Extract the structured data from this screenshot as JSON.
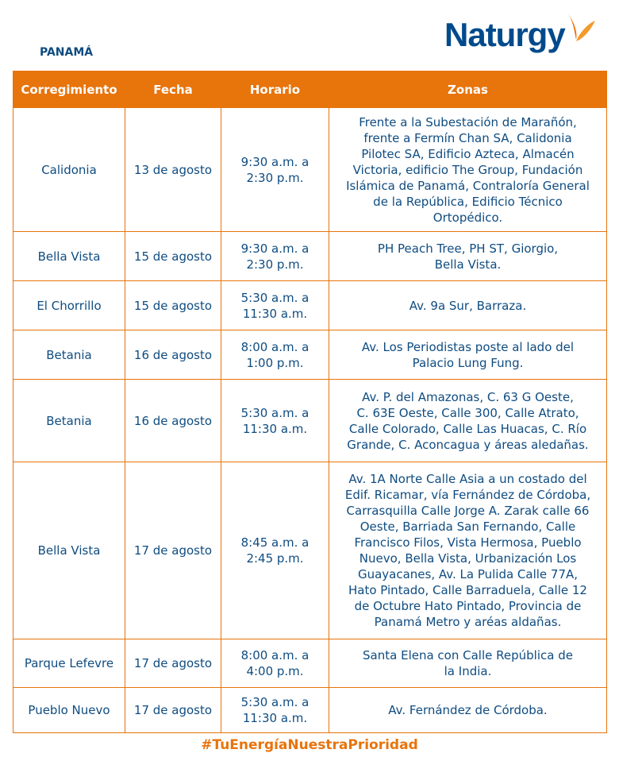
{
  "header": {
    "region": "PANAMÁ",
    "logo": "Naturgy",
    "brand_colors": {
      "orange": "#e8740c",
      "blue": "#0f4c81"
    }
  },
  "table": {
    "columns": [
      "Corregimiento",
      "Fecha",
      "Horario",
      "Zonas"
    ],
    "rows": [
      {
        "corregimiento": "Calidonia",
        "fecha": "13 de agosto",
        "horario": "9:30 a.m. a\n2:30 p.m.",
        "zonas": "Frente a la Subestación de Marañón,\nfrente a Fermín Chan SA, Calidonia\nPilotec SA, Edificio Azteca, Almacén\nVictoria, edificio The Group, Fundación\nIslámica de Panamá, Contraloría General\nde la República, Edificio Técnico\nOrtopédico."
      },
      {
        "corregimiento": "Bella Vista",
        "fecha": "15 de agosto",
        "horario": "9:30 a.m. a\n2:30 p.m.",
        "zonas": "PH Peach Tree, PH ST, Giorgio,\nBella Vista."
      },
      {
        "corregimiento": "El Chorrillo",
        "fecha": "15 de agosto",
        "horario": "5:30 a.m. a\n11:30 a.m.",
        "zonas": "Av. 9a Sur, Barraza."
      },
      {
        "corregimiento": "Betania",
        "fecha": "16 de agosto",
        "horario": "8:00 a.m. a\n1:00 p.m.",
        "zonas": "Av. Los Periodistas poste al lado del\nPalacio Lung Fung."
      },
      {
        "corregimiento": "Betania",
        "fecha": "16 de agosto",
        "horario": "5:30 a.m. a\n11:30 a.m.",
        "zonas": "Av. P. del Amazonas, C. 63 G Oeste,\nC. 63E Oeste, Calle 300, Calle Atrato,\nCalle Colorado, Calle Las Huacas, C. Río\nGrande, C. Aconcagua y áreas aledañas."
      },
      {
        "corregimiento": "Bella Vista",
        "fecha": "17 de agosto",
        "horario": "8:45 a.m. a\n2:45 p.m.",
        "zonas": "Av. 1A Norte Calle Asia a un costado del\nEdif. Ricamar, vía Fernández de Córdoba,\nCarrasquilla Calle Jorge A. Zarak calle 66\nOeste, Barriada San Fernando, Calle\nFrancisco Filos, Vista Hermosa, Pueblo\nNuevo, Bella Vista, Urbanización Los\nGuayacanes, Av. La Pulida Calle 77A,\nHato Pintado, Calle Barraduela, Calle 12\nde Octubre Hato Pintado, Provincia de\nPanamá Metro y aréas aldañas."
      },
      {
        "corregimiento": "Parque Lefevre",
        "fecha": "17 de agosto",
        "horario": "8:00 a.m. a\n4:00 p.m.",
        "zonas": "Santa Elena con Calle República de\nla India."
      },
      {
        "corregimiento": "Pueblo Nuevo",
        "fecha": "17 de agosto",
        "horario": "5:30 a.m. a\n11:30 a.m.",
        "zonas": "Av. Fernández de Córdoba."
      }
    ]
  },
  "footer": {
    "hashtag": "#TuEnergíaNuestraPrioridad"
  }
}
